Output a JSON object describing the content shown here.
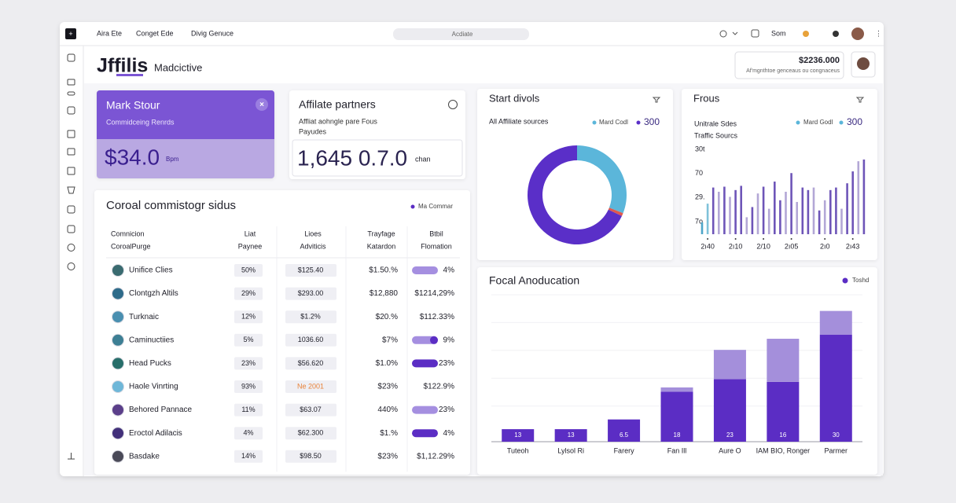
{
  "app_bar": {
    "nav": [
      "Aira Ete",
      "Conget Ede",
      "Divig Genuce"
    ],
    "search": "Acdiate",
    "user_menu": "Som"
  },
  "header": {
    "brand": "Jffilis",
    "brand_sub": "Madcictive",
    "balance": "$2236.000",
    "balance_note": "Af'mgnthtoe genceaus ou congnaceus"
  },
  "cards": [
    {
      "title": "Mark Stour",
      "subtitle": "Commidceing Renrds",
      "value": "$34.0",
      "unit": "Bpm"
    },
    {
      "title": "Affilate partners",
      "subtitle": "Affliat aohngle pare Fous",
      "subtitle2": "Payudes",
      "value": "1,645 0.7.0",
      "unit": "chan"
    }
  ],
  "table": {
    "title": "Coroal commistogr sidus",
    "legend": "Ma Commar",
    "columns": [
      [
        "Comnicion",
        "CoroalPurge"
      ],
      [
        "Liat",
        "Paynee"
      ],
      [
        "Lioes",
        "Adviticis"
      ],
      [
        "Trayfage",
        "Katardon"
      ],
      [
        "Btbil",
        "Flomation"
      ]
    ],
    "rows": [
      [
        "Unifice Clies",
        "50%",
        "$125.40",
        "$1.50.%",
        {
          "text": "4%",
          "progress": "light"
        }
      ],
      [
        "Clontgzh Altils",
        "29%",
        "$293.00",
        "$12,880",
        "$1214,29%"
      ],
      [
        "Turknaic",
        "12%",
        "$1.2%",
        "$20.%",
        "$112.33%"
      ],
      [
        "Caminuctiies",
        "5%",
        "1036.60",
        "$7%",
        {
          "text": "9%",
          "progress": "knob"
        }
      ],
      [
        "Head Pucks",
        "23%",
        "$56.620",
        "$1.0%",
        {
          "text": "23%",
          "progress": "dark"
        }
      ],
      [
        "Haole Vinrting",
        "93%",
        {
          "text": "Ne 2001",
          "color": "#e8833a"
        },
        "$23%",
        "$122.9%"
      ],
      [
        "Behored Pannace",
        "11%",
        "$63.07",
        "440%",
        {
          "text": "23%",
          "progress": "light"
        }
      ],
      [
        "Eroctol Adilacis",
        "4%",
        "$62.300",
        "$1.%",
        {
          "text": "4%",
          "progress": "dark"
        }
      ],
      [
        "Basdake",
        "14%",
        "$98.50",
        "$23%",
        "$1,12.29%"
      ]
    ]
  },
  "donut_chart": {
    "type": "pie",
    "title": "Start divols",
    "subtitle": "All Affiliate sources",
    "legend_label": "Mard Codl",
    "legend_value": 300,
    "values": [
      31,
      1,
      68
    ],
    "colors": [
      "#5bb6da",
      "#e0584d",
      "#5a2fc8"
    ]
  },
  "bar_chart": {
    "type": "bar",
    "title": "Frous",
    "subtitle": "Unitrale Sdes",
    "subtitle2": "Traffic Sourcs",
    "legend_label": "Mard Godl",
    "legend_value": 300,
    "axis_labels": [
      "30t",
      "70",
      "29.",
      "7o"
    ],
    "categories": [
      null,
      "2ı40",
      null,
      null,
      null,
      null,
      "2ı10",
      null,
      null,
      null,
      null,
      "2/10",
      null,
      null,
      null,
      null,
      "2ı05",
      null,
      null,
      null,
      null,
      null,
      "2ı0",
      null,
      null,
      null,
      null,
      "2ı43",
      null,
      null
    ],
    "values": [
      14,
      36,
      55,
      50,
      56,
      44,
      52,
      57,
      20,
      32,
      48,
      56,
      30,
      62,
      40,
      50,
      72,
      38,
      55,
      52,
      55,
      28,
      40,
      52,
      55,
      30,
      60,
      74,
      86,
      88
    ],
    "colors": [
      "#4fa6c9",
      "#7fc2d9",
      "#6e55b8",
      "#b3a7d6",
      "#6e55b8",
      "#b3a7d6",
      "#6e55b8",
      "#6e55b8",
      "#b3a7d6",
      "#6e55b8",
      "#b3a7d6",
      "#6e55b8",
      "#b3a7d6",
      "#6e55b8",
      "#6e55b8",
      "#b3a7d6",
      "#6e55b8",
      "#b3a7d6",
      "#6e55b8",
      "#6e55b8",
      "#b3a7d6",
      "#6e55b8",
      "#b3a7d6",
      "#6e55b8",
      "#6e55b8",
      "#b3a7d6",
      "#6e55b8",
      "#6e55b8",
      "#b3a7d6",
      "#6e55b8"
    ],
    "ylim": [
      0,
      100
    ]
  },
  "stacked_chart": {
    "type": "stacked_bar",
    "title": "Focal Anoducation",
    "categories": [
      "Tuteoh",
      "Lylsol Ri",
      "Farery",
      "Fan Ill",
      "Aure O",
      "IAM BIO, Ronger",
      "Parmer"
    ],
    "series": [
      {
        "name": "Toshd",
        "color": "#5b2dc4",
        "values": [
          9,
          9,
          16,
          36,
          45,
          43,
          77
        ]
      },
      {
        "color": "#a48fdb",
        "values": [
          0,
          0,
          0,
          3,
          21,
          31,
          17
        ]
      }
    ],
    "bar_tags": [
      "13",
      "13",
      "6.5",
      "18",
      "23",
      "16",
      "30"
    ],
    "ylim": [
      0,
      100
    ]
  }
}
